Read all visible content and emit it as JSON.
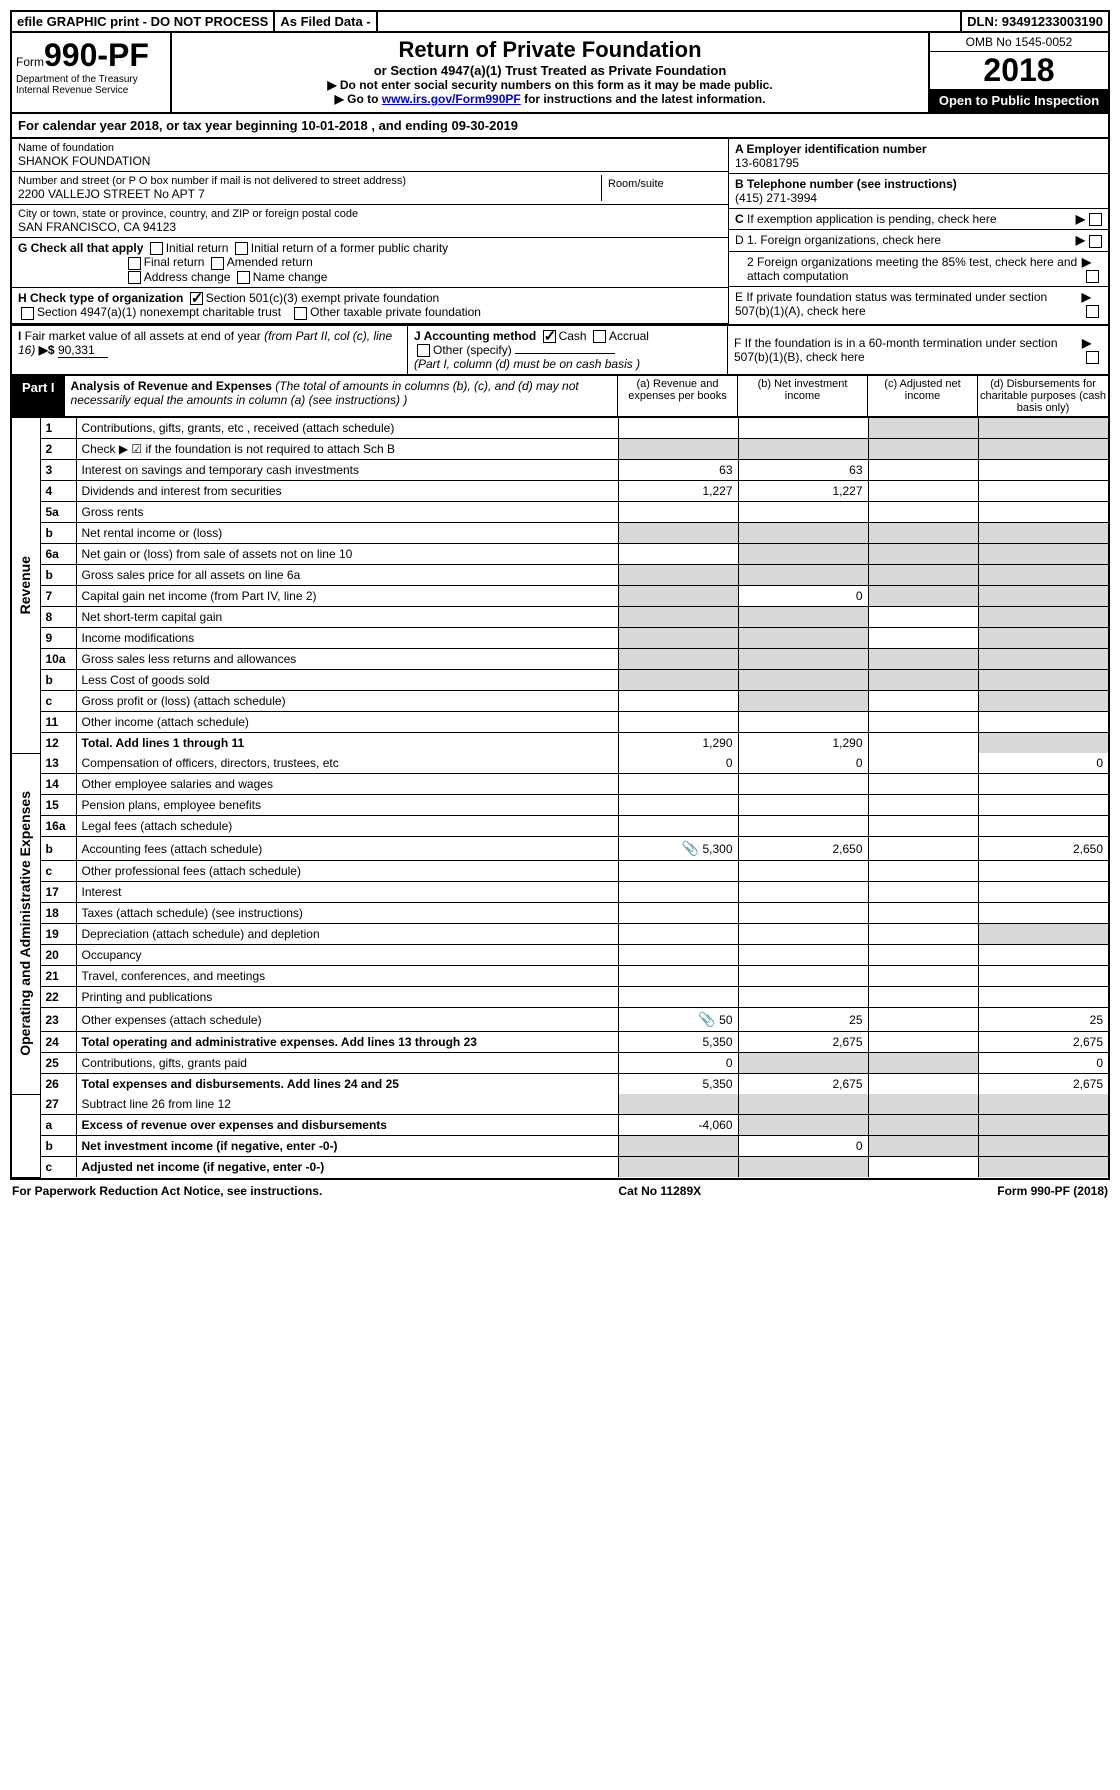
{
  "top_bar": {
    "efile": "efile GRAPHIC print - DO NOT PROCESS",
    "asfiled": "As Filed Data -",
    "dln": "DLN: 93491233003190"
  },
  "header": {
    "form_word": "Form",
    "form_no": "990-PF",
    "dept1": "Department of the Treasury",
    "dept2": "Internal Revenue Service",
    "title": "Return of Private Foundation",
    "subtitle": "or Section 4947(a)(1) Trust Treated as Private Foundation",
    "instr1": "▶ Do not enter social security numbers on this form as it may be made public.",
    "instr2a": "▶ Go to ",
    "instr2_link": "www.irs.gov/Form990PF",
    "instr2b": " for instructions and the latest information.",
    "omb": "OMB No 1545-0052",
    "year": "2018",
    "open": "Open to Public Inspection"
  },
  "cal_year": {
    "prefix": "For calendar year 2018, or tax year beginning ",
    "begin": "10-01-2018",
    "mid": " , and ending ",
    "end": "09-30-2019"
  },
  "info": {
    "name_lbl": "Name of foundation",
    "name": "SHANOK FOUNDATION",
    "addr_lbl": "Number and street (or P O  box number if mail is not delivered to street address)",
    "addr": "2200 VALLEJO STREET No APT 7",
    "room_lbl": "Room/suite",
    "city_lbl": "City or town, state or province, country, and ZIP or foreign postal code",
    "city": "SAN FRANCISCO, CA  94123",
    "a_lbl": "A Employer identification number",
    "a_val": "13-6081795",
    "b_lbl": "B Telephone number (see instructions)",
    "b_val": "(415) 271-3994",
    "c_lbl": "C If exemption application is pending, check here",
    "d1": "D 1. Foreign organizations, check here",
    "d2": "2 Foreign organizations meeting the 85% test, check here and attach computation",
    "e": "E  If private foundation status was terminated under section 507(b)(1)(A), check here",
    "f": "F  If the foundation is in a 60-month termination under section 507(b)(1)(B), check here"
  },
  "g": {
    "lbl": "G Check all that apply",
    "opts": [
      "Initial return",
      "Initial return of a former public charity",
      "Final return",
      "Amended return",
      "Address change",
      "Name change"
    ]
  },
  "h": {
    "lbl": "H Check type of organization",
    "opt1": "Section 501(c)(3) exempt private foundation",
    "opt2": "Section 4947(a)(1) nonexempt charitable trust",
    "opt3": "Other taxable private foundation"
  },
  "i": {
    "lbl": "I Fair market value of all assets at end of year (from Part II, col  (c), line 16) ▶$ ",
    "val": "90,331"
  },
  "j": {
    "lbl": "J Accounting method",
    "cash": "Cash",
    "accrual": "Accrual",
    "other": "Other (specify)",
    "note": "(Part I, column (d) must be on cash basis )"
  },
  "part1": {
    "badge": "Part I",
    "title": "Analysis of Revenue and Expenses",
    "note": " (The total of amounts in columns (b), (c), and (d) may not necessarily equal the amounts in column (a) (see instructions) )",
    "col_a": "(a) Revenue and expenses per books",
    "col_b": "(b) Net investment income",
    "col_c": "(c) Adjusted net income",
    "col_d": "(d) Disbursements for charitable purposes (cash basis only)"
  },
  "side": {
    "revenue": "Revenue",
    "expenses": "Operating and Administrative Expenses"
  },
  "rows": [
    {
      "n": "1",
      "d": "Contributions, gifts, grants, etc , received (attach schedule)",
      "a": "",
      "b": "",
      "c": "",
      "dd": "",
      "shade_cd": true
    },
    {
      "n": "2",
      "d": "Check ▶ ☑ if the foundation is not required to attach Sch  B",
      "a": "",
      "b": "",
      "c": "",
      "dd": "",
      "allshade": true
    },
    {
      "n": "3",
      "d": "Interest on savings and temporary cash investments",
      "a": "63",
      "b": "63",
      "c": "",
      "dd": ""
    },
    {
      "n": "4",
      "d": "Dividends and interest from securities",
      "a": "1,227",
      "b": "1,227",
      "c": "",
      "dd": ""
    },
    {
      "n": "5a",
      "d": "Gross rents",
      "a": "",
      "b": "",
      "c": "",
      "dd": ""
    },
    {
      "n": "b",
      "d": "Net rental income or (loss)",
      "a": "",
      "b": "",
      "c": "",
      "dd": "",
      "allshade": true
    },
    {
      "n": "6a",
      "d": "Net gain or (loss) from sale of assets not on line 10",
      "a": "",
      "b": "",
      "c": "",
      "dd": "",
      "shade_bcd": true
    },
    {
      "n": "b",
      "d": "Gross sales price for all assets on line 6a",
      "a": "",
      "b": "",
      "c": "",
      "dd": "",
      "allshade": true
    },
    {
      "n": "7",
      "d": "Capital gain net income (from Part IV, line 2)",
      "a": "",
      "b": "0",
      "c": "",
      "dd": "",
      "shade_a": true,
      "shade_cd": true
    },
    {
      "n": "8",
      "d": "Net short-term capital gain",
      "a": "",
      "b": "",
      "c": "",
      "dd": "",
      "shade_ab": true,
      "shade_d": true
    },
    {
      "n": "9",
      "d": "Income modifications",
      "a": "",
      "b": "",
      "c": "",
      "dd": "",
      "shade_ab": true,
      "shade_d": true
    },
    {
      "n": "10a",
      "d": "Gross sales less returns and allowances",
      "a": "",
      "b": "",
      "c": "",
      "dd": "",
      "allshade": true
    },
    {
      "n": "b",
      "d": "Less  Cost of goods sold",
      "a": "",
      "b": "",
      "c": "",
      "dd": "",
      "allshade": true
    },
    {
      "n": "c",
      "d": "Gross profit or (loss) (attach schedule)",
      "a": "",
      "b": "",
      "c": "",
      "dd": "",
      "shade_b": true,
      "shade_d": true
    },
    {
      "n": "11",
      "d": "Other income (attach schedule)",
      "a": "",
      "b": "",
      "c": "",
      "dd": ""
    },
    {
      "n": "12",
      "d": "Total. Add lines 1 through 11",
      "a": "1,290",
      "b": "1,290",
      "c": "",
      "dd": "",
      "bold": true,
      "shade_d": true
    }
  ],
  "exp_rows": [
    {
      "n": "13",
      "d": "Compensation of officers, directors, trustees, etc",
      "a": "0",
      "b": "0",
      "c": "",
      "dd": "0"
    },
    {
      "n": "14",
      "d": "Other employee salaries and wages",
      "a": "",
      "b": "",
      "c": "",
      "dd": ""
    },
    {
      "n": "15",
      "d": "Pension plans, employee benefits",
      "a": "",
      "b": "",
      "c": "",
      "dd": ""
    },
    {
      "n": "16a",
      "d": "Legal fees (attach schedule)",
      "a": "",
      "b": "",
      "c": "",
      "dd": ""
    },
    {
      "n": "b",
      "d": "Accounting fees (attach schedule)",
      "a": "5,300",
      "b": "2,650",
      "c": "",
      "dd": "2,650",
      "icon": true
    },
    {
      "n": "c",
      "d": "Other professional fees (attach schedule)",
      "a": "",
      "b": "",
      "c": "",
      "dd": ""
    },
    {
      "n": "17",
      "d": "Interest",
      "a": "",
      "b": "",
      "c": "",
      "dd": ""
    },
    {
      "n": "18",
      "d": "Taxes (attach schedule) (see instructions)",
      "a": "",
      "b": "",
      "c": "",
      "dd": ""
    },
    {
      "n": "19",
      "d": "Depreciation (attach schedule) and depletion",
      "a": "",
      "b": "",
      "c": "",
      "dd": "",
      "shade_d": true
    },
    {
      "n": "20",
      "d": "Occupancy",
      "a": "",
      "b": "",
      "c": "",
      "dd": ""
    },
    {
      "n": "21",
      "d": "Travel, conferences, and meetings",
      "a": "",
      "b": "",
      "c": "",
      "dd": ""
    },
    {
      "n": "22",
      "d": "Printing and publications",
      "a": "",
      "b": "",
      "c": "",
      "dd": ""
    },
    {
      "n": "23",
      "d": "Other expenses (attach schedule)",
      "a": "50",
      "b": "25",
      "c": "",
      "dd": "25",
      "icon": true
    },
    {
      "n": "24",
      "d": "Total operating and administrative expenses. Add lines 13 through 23",
      "a": "5,350",
      "b": "2,675",
      "c": "",
      "dd": "2,675",
      "bold": true
    },
    {
      "n": "25",
      "d": "Contributions, gifts, grants paid",
      "a": "0",
      "b": "",
      "c": "",
      "dd": "0",
      "shade_bc": true
    },
    {
      "n": "26",
      "d": "Total expenses and disbursements. Add lines 24 and 25",
      "a": "5,350",
      "b": "2,675",
      "c": "",
      "dd": "2,675",
      "bold": true
    }
  ],
  "bottom_rows": [
    {
      "n": "27",
      "d": "Subtract line 26 from line 12",
      "a": "",
      "b": "",
      "c": "",
      "dd": "",
      "allshade": true
    },
    {
      "n": "a",
      "d": "Excess of revenue over expenses and disbursements",
      "a": "-4,060",
      "b": "",
      "c": "",
      "dd": "",
      "bold": true,
      "shade_bcd": true
    },
    {
      "n": "b",
      "d": "Net investment income (if negative, enter -0-)",
      "a": "",
      "b": "0",
      "c": "",
      "dd": "",
      "bold": true,
      "shade_a": true,
      "shade_cd": true
    },
    {
      "n": "c",
      "d": "Adjusted net income (if negative, enter -0-)",
      "a": "",
      "b": "",
      "c": "",
      "dd": "",
      "bold": true,
      "shade_ab": true,
      "shade_d": true
    }
  ],
  "footer": {
    "left": "For Paperwork Reduction Act Notice, see instructions.",
    "mid": "Cat  No  11289X",
    "right": "Form 990-PF (2018)"
  }
}
